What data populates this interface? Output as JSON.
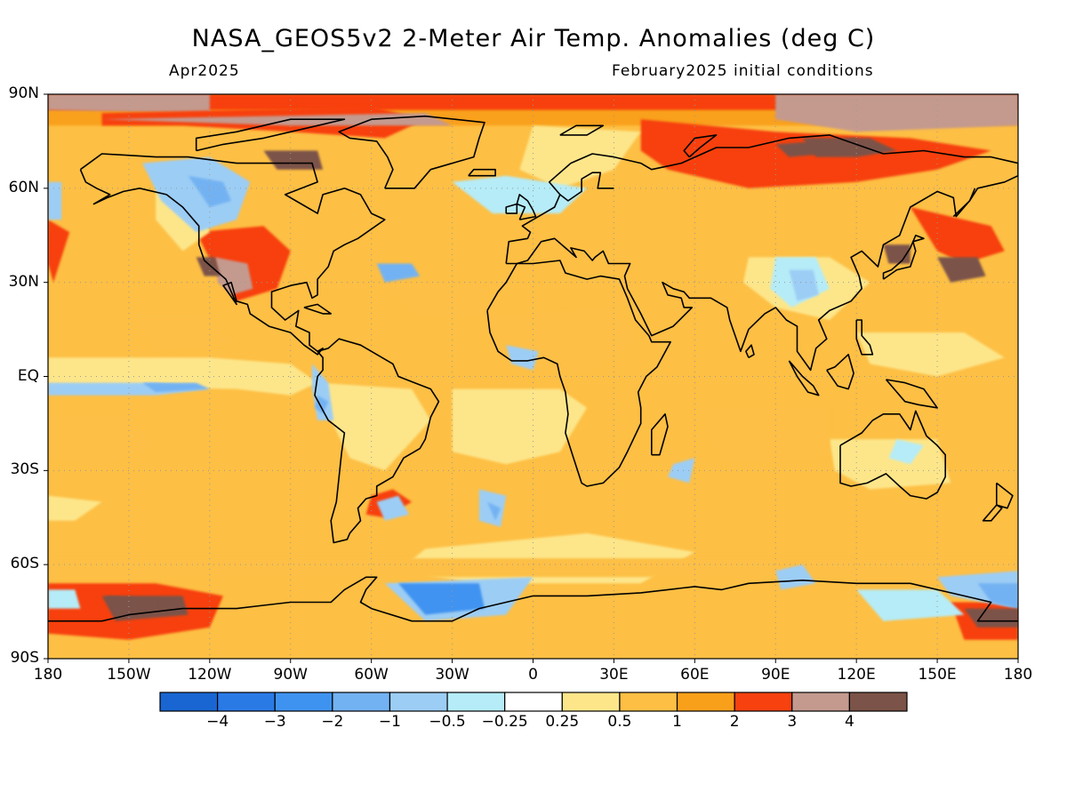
{
  "header": {
    "title": "NASA_GEOS5v2 2-Meter Air Temp. Anomalies (deg C)",
    "left_subtitle": "Apr2025",
    "right_subtitle": "February2025 initial conditions"
  },
  "axes": {
    "lat_labels": [
      "90N",
      "60N",
      "30N",
      "EQ",
      "30S",
      "60S",
      "90S"
    ],
    "lon_labels": [
      "180",
      "150W",
      "120W",
      "90W",
      "60W",
      "30W",
      "0",
      "30E",
      "60E",
      "90E",
      "120E",
      "150E",
      "180"
    ]
  },
  "colorbar": {
    "colors": [
      "#1966d2",
      "#2a7ae6",
      "#3f93f0",
      "#73b2f2",
      "#9ccdf5",
      "#b5ecf7",
      "#ffffff",
      "#fde68a",
      "#fdbf44",
      "#f9a01b",
      "#f7410f",
      "#c49a8f",
      "#7b5348"
    ],
    "labels": [
      "-4",
      "-3",
      "-2",
      "-1",
      "-0.5",
      "-0.25",
      "0.25",
      "0.5",
      "1",
      "2",
      "3",
      "4"
    ]
  },
  "map_colors": {
    "ocean_base": "#fdbf44",
    "coast": "#000000",
    "grid": "#9a9a9a"
  }
}
